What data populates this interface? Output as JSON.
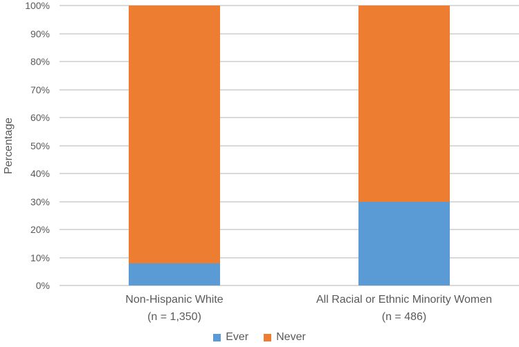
{
  "chart_data": {
    "type": "bar",
    "stacked": true,
    "title": "",
    "xlabel": "",
    "ylabel": "Percentage",
    "ylim": [
      0,
      100
    ],
    "y_tick_step": 10,
    "y_tick_suffix": "%",
    "grid": true,
    "legend_position": "bottom",
    "categories": [
      {
        "line1": "Non-Hispanic White",
        "line2": "(n = 1,350)"
      },
      {
        "line1": "All Racial or Ethnic Minority Women",
        "line2": "(n = 486)"
      }
    ],
    "series": [
      {
        "name": "Ever",
        "color": "#5B9BD5",
        "values": [
          8,
          30
        ]
      },
      {
        "name": "Never",
        "color": "#ED7D31",
        "values": [
          92,
          70
        ]
      }
    ]
  },
  "colors": {
    "gridline": "#D9D9D9",
    "text": "#595959",
    "background": "#FFFFFF"
  }
}
